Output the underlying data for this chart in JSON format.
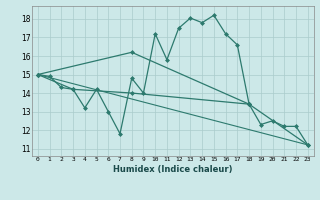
{
  "xlabel": "Humidex (Indice chaleur)",
  "background_color": "#cce8e8",
  "grid_color": "#aacccc",
  "line_color": "#2d7a6e",
  "xlim": [
    -0.5,
    23.5
  ],
  "ylim": [
    10.6,
    18.7
  ],
  "yticks": [
    11,
    12,
    13,
    14,
    15,
    16,
    17,
    18
  ],
  "xticks": [
    0,
    1,
    2,
    3,
    4,
    5,
    6,
    7,
    8,
    9,
    10,
    11,
    12,
    13,
    14,
    15,
    16,
    17,
    18,
    19,
    20,
    21,
    22,
    23
  ],
  "series_main": [
    [
      0,
      15.0
    ],
    [
      1,
      14.9
    ],
    [
      2,
      14.3
    ],
    [
      3,
      14.2
    ],
    [
      4,
      13.2
    ],
    [
      5,
      14.2
    ],
    [
      6,
      13.0
    ],
    [
      7,
      11.8
    ],
    [
      8,
      14.8
    ],
    [
      9,
      14.0
    ],
    [
      10,
      17.2
    ],
    [
      11,
      15.8
    ],
    [
      12,
      17.5
    ],
    [
      13,
      18.05
    ],
    [
      14,
      17.8
    ],
    [
      15,
      18.2
    ],
    [
      16,
      17.2
    ],
    [
      17,
      16.6
    ],
    [
      18,
      13.4
    ],
    [
      19,
      12.3
    ],
    [
      20,
      12.5
    ],
    [
      21,
      12.2
    ],
    [
      22,
      12.2
    ],
    [
      23,
      11.2
    ]
  ],
  "series2": [
    [
      0,
      15.0
    ],
    [
      3,
      14.2
    ],
    [
      8,
      14.0
    ],
    [
      18,
      13.4
    ],
    [
      23,
      11.2
    ]
  ],
  "series3": [
    [
      0,
      15.0
    ],
    [
      8,
      16.2
    ],
    [
      18,
      13.4
    ]
  ],
  "series4": [
    [
      0,
      15.0
    ],
    [
      23,
      11.2
    ]
  ]
}
